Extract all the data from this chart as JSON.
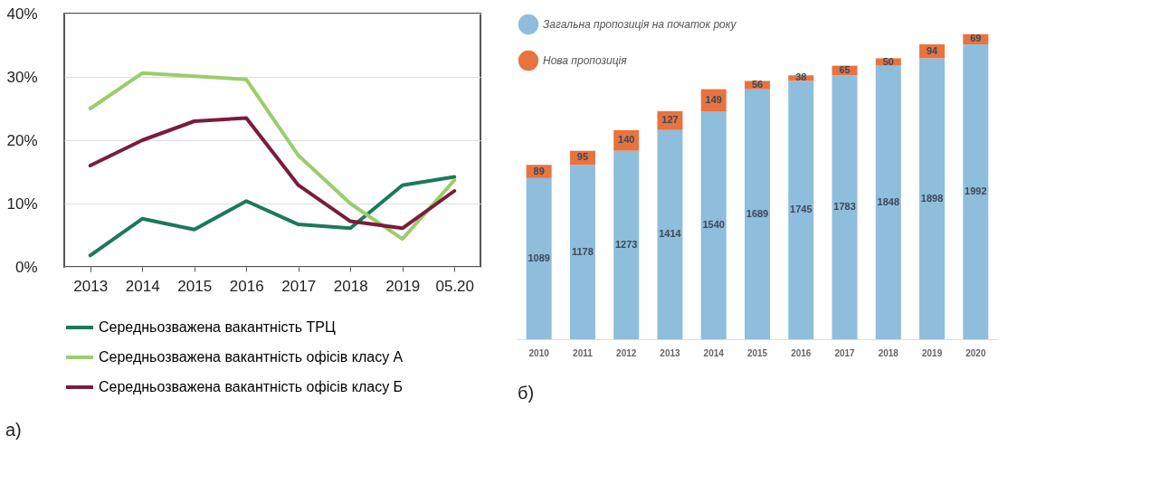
{
  "chart_data": [
    {
      "type": "line",
      "categories": [
        "2013",
        "2014",
        "2015",
        "2016",
        "2017",
        "2018",
        "2019",
        "05.20"
      ],
      "series": [
        {
          "name": "Середньозважена вакантність ТРЦ",
          "color": "#1b7a58",
          "values": [
            1.8,
            7.6,
            5.9,
            10.4,
            6.7,
            6.1,
            12.9,
            14.2
          ]
        },
        {
          "name": "Середньозважена вакантність офісів класу А",
          "color": "#9ccc6c",
          "values": [
            25.0,
            30.6,
            30.1,
            29.6,
            17.6,
            10.0,
            4.4,
            13.7
          ]
        },
        {
          "name": "Середньозважена вакантність офісів класу Б",
          "color": "#7b1c3c",
          "values": [
            16.0,
            20.0,
            23.0,
            23.5,
            12.9,
            7.2,
            6.1,
            12.0
          ]
        }
      ],
      "ylim": [
        0,
        40
      ],
      "yticks": [
        {
          "value": 0,
          "label": "0%"
        },
        {
          "value": 10,
          "label": "10%"
        },
        {
          "value": 20,
          "label": "20%"
        },
        {
          "value": 30,
          "label": "30%"
        },
        {
          "value": 40,
          "label": "40%"
        }
      ],
      "grid": "y",
      "legend": "bottom",
      "line_style": "solid",
      "annotations": [
        "а)"
      ]
    },
    {
      "type": "bar",
      "stacked": true,
      "categories": [
        "2010",
        "2011",
        "2012",
        "2013",
        "2014",
        "2015",
        "2016",
        "2017",
        "2018",
        "2019",
        "2020"
      ],
      "series": [
        {
          "name": "Загальна пропозиція на початок року",
          "color": "#8fbddc",
          "values": [
            1089,
            1178,
            1273,
            1414,
            1540,
            1689,
            1745,
            1783,
            1848,
            1898,
            1992
          ]
        },
        {
          "name": "Нова пропозиція",
          "color": "#e8733f",
          "values": [
            89,
            95,
            140,
            127,
            149,
            56,
            38,
            65,
            50,
            94,
            69
          ]
        }
      ],
      "data_labels": true,
      "legend": "top left",
      "annotations": [
        "б)"
      ]
    }
  ]
}
